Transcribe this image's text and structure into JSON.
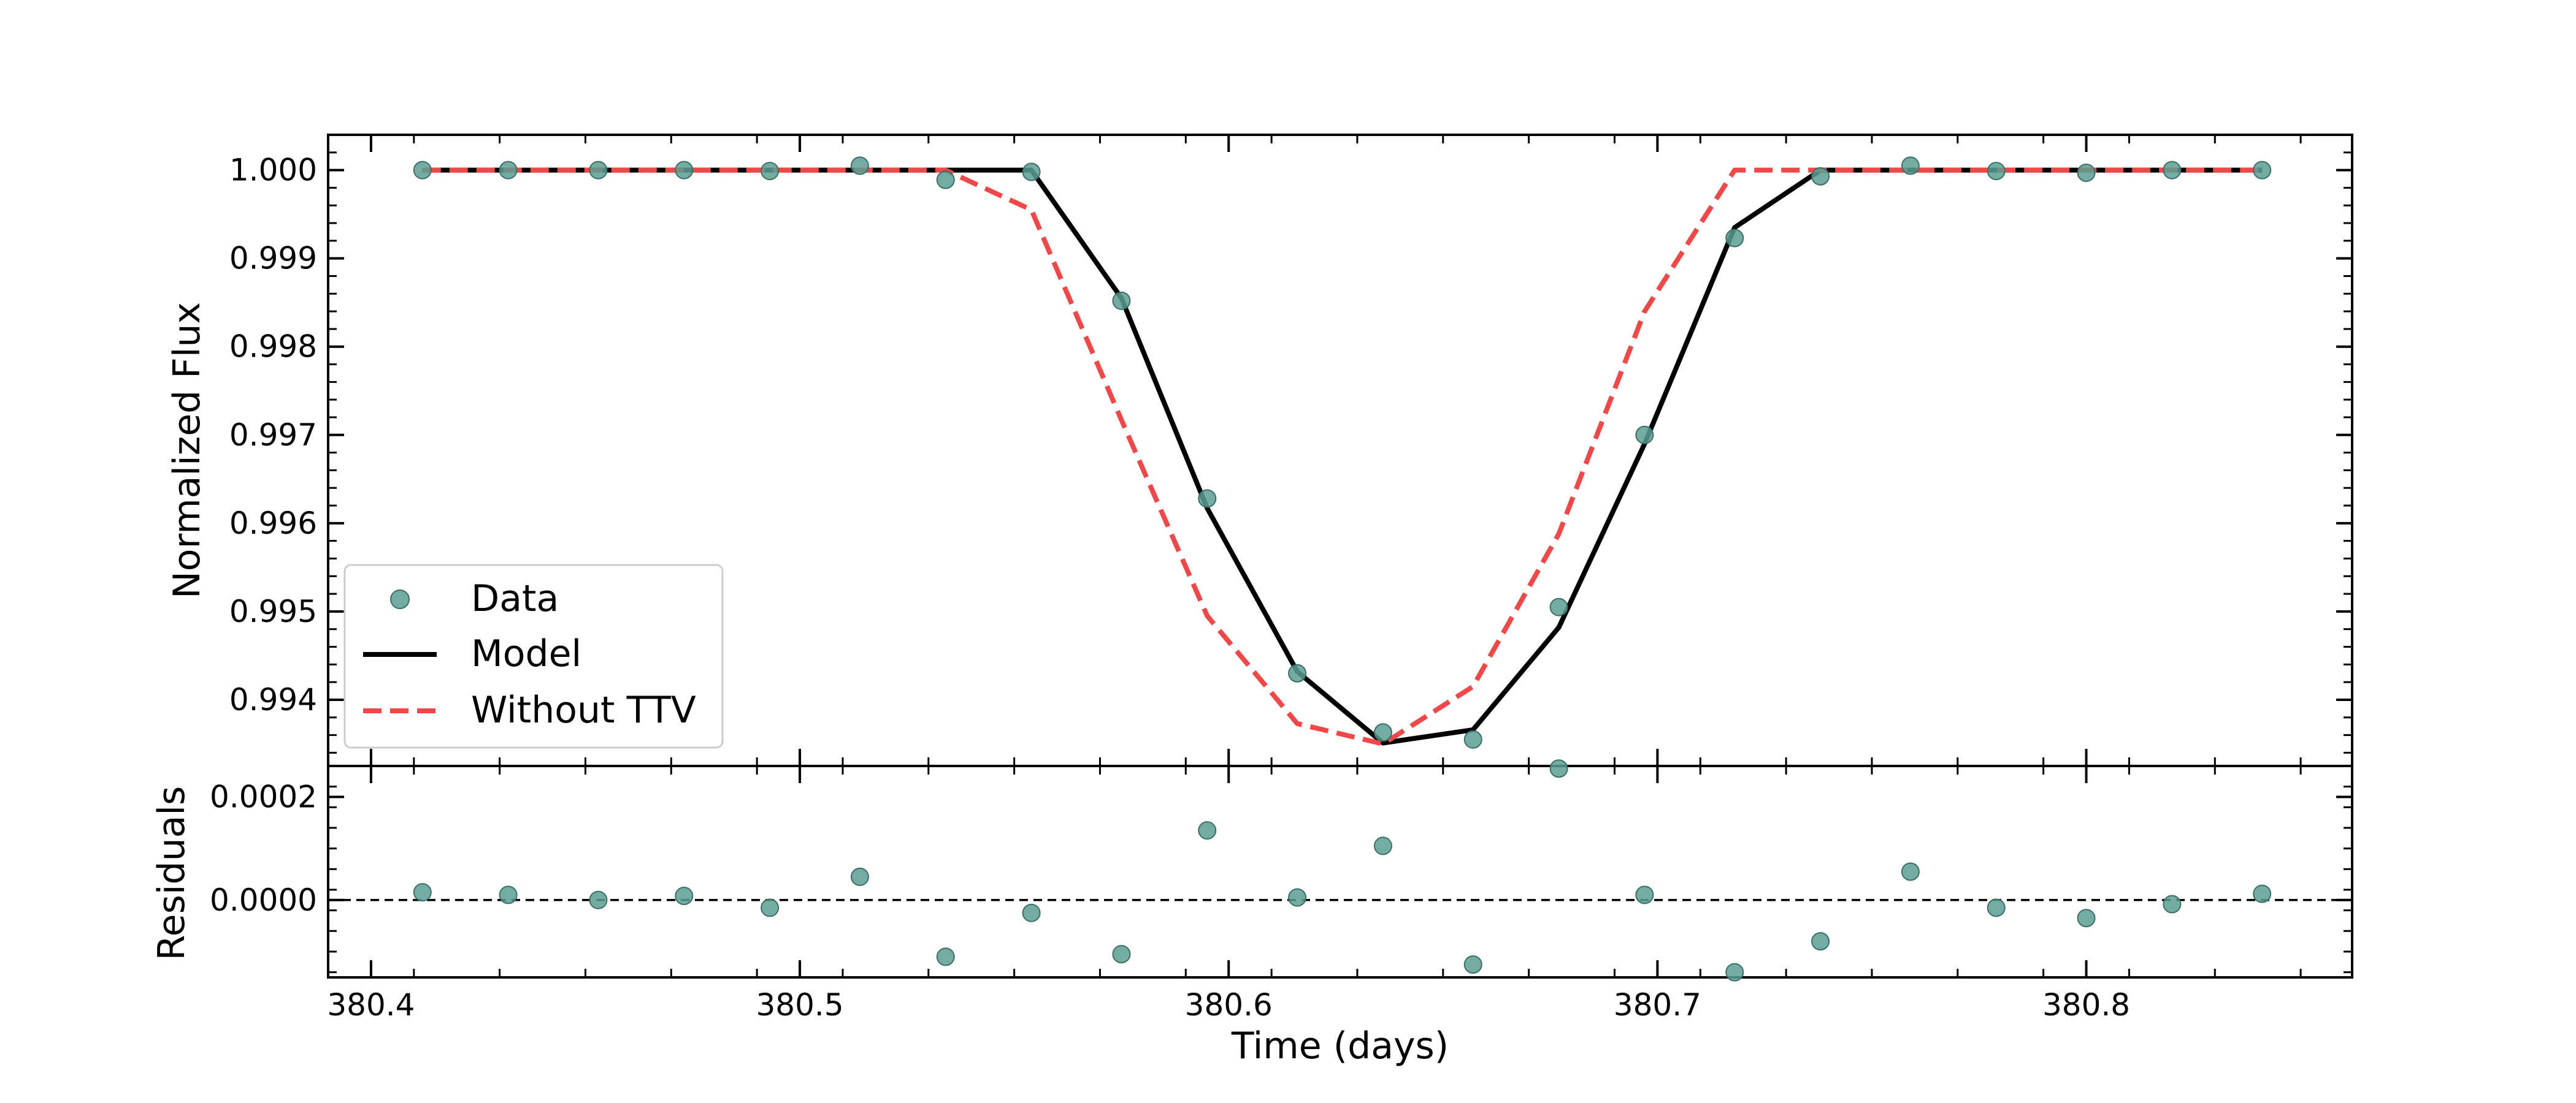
{
  "chart_data": [
    {
      "type": "line",
      "panel": "main",
      "ylabel": "Normalized Flux",
      "ylim": [
        0.99325,
        1.0004
      ],
      "xlim": [
        380.39,
        380.862
      ],
      "yticks": [
        0.994,
        0.995,
        0.996,
        0.997,
        0.998,
        0.999,
        1.0
      ],
      "ytick_labels": [
        "0.994",
        "0.995",
        "0.996",
        "0.997",
        "0.998",
        "0.999",
        "1.000"
      ],
      "legend_position": "lower-left",
      "series": [
        {
          "name": "Data",
          "kind": "scatter",
          "color": "#5a9e92",
          "x": [
            380.412,
            380.432,
            380.453,
            380.473,
            380.493,
            380.514,
            380.534,
            380.554,
            380.575,
            380.595,
            380.616,
            380.636,
            380.657,
            380.677,
            380.697,
            380.718,
            380.738,
            380.759,
            380.779,
            380.8,
            380.82,
            380.841
          ],
          "y": [
            1.0,
            1.0,
            1.0,
            1.0,
            0.99999,
            1.00005,
            0.99989,
            0.99998,
            0.99852,
            0.99628,
            0.9943,
            0.99363,
            0.99355,
            0.99505,
            0.997,
            0.99923,
            0.99993,
            1.00005,
            0.99999,
            0.99997,
            1.0,
            1.0
          ]
        },
        {
          "name": "Model",
          "kind": "line",
          "color": "#000000",
          "x": [
            380.412,
            380.432,
            380.453,
            380.473,
            380.493,
            380.514,
            380.534,
            380.554,
            380.575,
            380.595,
            380.616,
            380.636,
            380.657,
            380.677,
            380.697,
            380.718,
            380.738,
            380.759,
            380.779,
            380.8,
            380.82,
            380.841
          ],
          "y": [
            1.0,
            1.0,
            1.0,
            1.0,
            1.0,
            1.0,
            1.0,
            1.0,
            0.99855,
            0.99617,
            0.99432,
            0.99351,
            0.99366,
            0.99482,
            0.9969,
            0.99935,
            1.0,
            1.0,
            1.0,
            1.0,
            1.0,
            1.0
          ]
        },
        {
          "name": "Without TTV",
          "kind": "line",
          "dashed": true,
          "color": "#f04848",
          "x": [
            380.412,
            380.432,
            380.453,
            380.473,
            380.493,
            380.514,
            380.534,
            380.554,
            380.575,
            380.595,
            380.616,
            380.636,
            380.657,
            380.677,
            380.697,
            380.718,
            380.738,
            380.759,
            380.779,
            380.8,
            380.82,
            380.841
          ],
          "y": [
            1.0,
            1.0,
            1.0,
            1.0,
            1.0,
            1.0,
            1.0,
            0.99955,
            0.99717,
            0.99495,
            0.99373,
            0.9935,
            0.99415,
            0.99588,
            0.9984,
            1.0,
            1.0,
            1.0,
            1.0,
            1.0,
            1.0,
            1.0
          ]
        }
      ]
    },
    {
      "type": "scatter",
      "panel": "residuals",
      "ylabel": "Residuals",
      "xlabel": "Time (days)",
      "xlim": [
        380.39,
        380.862
      ],
      "ylim": [
        -0.00015,
        0.00026
      ],
      "yticks": [
        0.0,
        0.0002
      ],
      "ytick_labels": [
        "0.0000",
        "0.0002"
      ],
      "xticks": [
        380.4,
        380.5,
        380.6,
        380.7,
        380.8
      ],
      "xtick_labels": [
        "380.4",
        "380.5",
        "380.6",
        "380.7",
        "380.8"
      ],
      "reference_line": 0.0,
      "series": [
        {
          "name": "Data",
          "color": "#5a9e92",
          "x": [
            380.412,
            380.432,
            380.453,
            380.473,
            380.493,
            380.514,
            380.534,
            380.554,
            380.575,
            380.595,
            380.616,
            380.636,
            380.657,
            380.677,
            380.697,
            380.718,
            380.738,
            380.759,
            380.779,
            380.8,
            380.82,
            380.841
          ],
          "y": [
            1.5e-05,
            1e-05,
            0.0,
            8e-06,
            -1.5e-05,
            4.5e-05,
            -0.00011,
            -2.5e-05,
            -0.000105,
            0.000135,
            5e-06,
            0.000105,
            -0.000125,
            0.000255,
            1e-05,
            -0.00014,
            -8e-05,
            5.5e-05,
            -1.5e-05,
            -3.5e-05,
            -8e-06,
            1.2e-05
          ]
        }
      ]
    }
  ],
  "legend": {
    "entries": [
      "Data",
      "Model",
      "Without TTV"
    ]
  }
}
